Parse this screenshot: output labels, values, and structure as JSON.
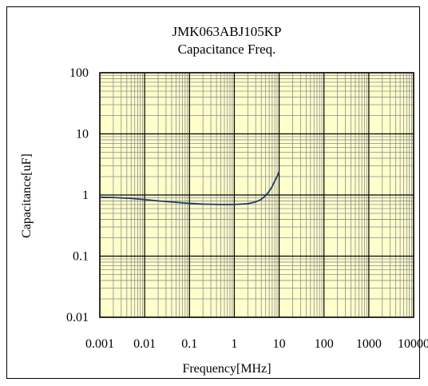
{
  "chart_data": {
    "type": "line",
    "title": "JMK063ABJ105KP",
    "subtitle": "Capacitance Freq.",
    "xlabel": "Frequency[MHz]",
    "ylabel": "Capacitance[uF]",
    "xscale": "log",
    "yscale": "log",
    "xlim": [
      0.001,
      10000
    ],
    "ylim": [
      0.01,
      100
    ],
    "xticks": [
      0.001,
      0.01,
      0.1,
      1,
      10,
      100,
      1000,
      10000
    ],
    "xtick_labels": [
      "0.001",
      "0.01",
      "0.1",
      "1",
      "10",
      "100",
      "1000",
      "10000"
    ],
    "yticks": [
      0.01,
      0.1,
      1,
      10,
      100
    ],
    "ytick_labels": [
      "0.01",
      "0.1",
      "1",
      "10",
      "100"
    ],
    "grid": true,
    "legend": "none",
    "series": [
      {
        "x": [
          0.001,
          0.002,
          0.005,
          0.01,
          0.02,
          0.05,
          0.1,
          0.2,
          0.5,
          1,
          2,
          3,
          4,
          5,
          6,
          7,
          8,
          9,
          10
        ],
        "y": [
          0.92,
          0.91,
          0.88,
          0.84,
          0.8,
          0.76,
          0.73,
          0.71,
          0.7,
          0.7,
          0.72,
          0.77,
          0.85,
          0.98,
          1.15,
          1.38,
          1.7,
          2.0,
          2.4
        ]
      }
    ],
    "colors": {
      "plot_background": "#ffffcc",
      "major_grid": "#000000",
      "minor_grid": "#8c8c8c",
      "line": "#1f3a5f"
    }
  }
}
